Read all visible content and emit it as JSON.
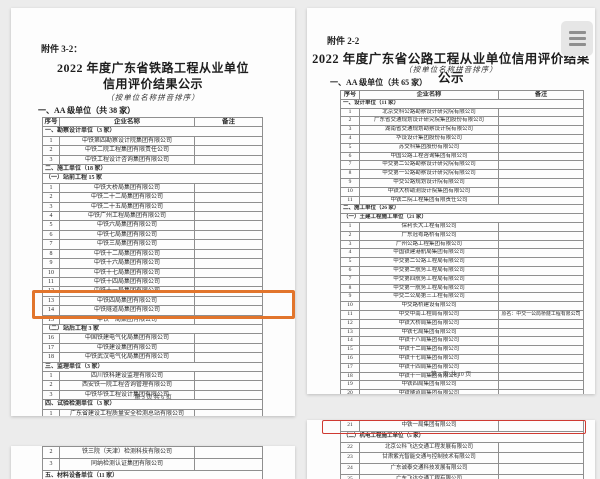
{
  "viewer": {
    "menu_icon": "hamburger-menu-icon",
    "highlight_orange": "#e2752c",
    "highlight_red": "#cf3a32"
  },
  "left_page": {
    "attachment": "附件 3-2：",
    "title_line1": "2022 年度广东省铁路工程从业单位",
    "title_line2": "信用评价结果公示",
    "subtitle": "（按单位名称拼音排序）",
    "section": "一、AA 级单位（共 38 家）",
    "columns": [
      "序号",
      "企业名称",
      "备注"
    ],
    "rows": [
      {
        "t": "group",
        "label": "一、勘察设计单位（3 家）"
      },
      {
        "t": "item",
        "no": "1",
        "name": "中铁第四勘察设计院集团有限公司",
        "note": ""
      },
      {
        "t": "item",
        "no": "2",
        "name": "中铁二院工程集团有限责任公司",
        "note": ""
      },
      {
        "t": "item",
        "no": "3",
        "name": "中铁工程设计咨询集团有限公司",
        "note": ""
      },
      {
        "t": "group",
        "label": "二、施工单位（18 家）"
      },
      {
        "t": "sub",
        "label": "（一）站前工程 15 家"
      },
      {
        "t": "item",
        "no": "1",
        "name": "中铁大桥局集团有限公司",
        "note": ""
      },
      {
        "t": "item",
        "no": "2",
        "name": "中铁二十二局集团有限公司",
        "note": ""
      },
      {
        "t": "item",
        "no": "3",
        "name": "中铁二十五局集团有限公司",
        "note": ""
      },
      {
        "t": "item",
        "no": "4",
        "name": "中铁广州工程局集团有限公司",
        "note": ""
      },
      {
        "t": "item",
        "no": "5",
        "name": "中铁六局集团有限公司",
        "note": ""
      },
      {
        "t": "item",
        "no": "6",
        "name": "中铁七局集团有限公司",
        "note": ""
      },
      {
        "t": "item",
        "no": "7",
        "name": "中铁三局集团有限公司",
        "note": ""
      },
      {
        "t": "item",
        "no": "8",
        "name": "中铁十二局集团有限公司",
        "note": ""
      },
      {
        "t": "item",
        "no": "9",
        "name": "中铁十六局集团有限公司",
        "note": ""
      },
      {
        "t": "item",
        "no": "10",
        "name": "中铁十七局集团有限公司",
        "note": ""
      },
      {
        "t": "item",
        "no": "11",
        "name": "中铁十四局集团有限公司",
        "note": ""
      },
      {
        "t": "item",
        "no": "12",
        "name": "中铁十一局集团有限公司",
        "note": ""
      },
      {
        "t": "item",
        "no": "13",
        "name": "中铁四局集团有限公司",
        "note": ""
      },
      {
        "t": "item",
        "no": "14",
        "name": "中铁隧道局集团有限公司",
        "note": ""
      },
      {
        "t": "item",
        "no": "15",
        "name": "中铁一局集团有限公司",
        "note": ""
      },
      {
        "t": "sub",
        "label": "（二）站后工程 3 家"
      },
      {
        "t": "item",
        "no": "16",
        "name": "中国铁建电气化局集团有限公司",
        "note": ""
      },
      {
        "t": "item",
        "no": "17",
        "name": "中铁建设集团有限公司",
        "note": ""
      },
      {
        "t": "item",
        "no": "18",
        "name": "中铁武汉电气化局集团有限公司",
        "note": ""
      },
      {
        "t": "group",
        "label": "三、监理单位（3 家）"
      },
      {
        "t": "item",
        "no": "1",
        "name": "四川铁科建设监理有限公司",
        "note": ""
      },
      {
        "t": "item",
        "no": "2",
        "name": "西安铁一院工程咨询管理有限公司",
        "note": ""
      },
      {
        "t": "item",
        "no": "3",
        "name": "中铁华铁工程设计集团有限公司",
        "note": ""
      },
      {
        "t": "group",
        "label": "四、试验检测单位（3 家）"
      },
      {
        "t": "item",
        "no": "1",
        "name": "广东省建设工程质量安全检测总站有限公司",
        "note": ""
      }
    ],
    "footer": "第 3 页 共 6 页"
  },
  "left_fragment": {
    "rows": [
      {
        "t": "item",
        "no": "2",
        "name": "铁三院（天津）检测科技有限公司",
        "note": ""
      },
      {
        "t": "item",
        "no": "3",
        "name": "同纳检测认证集团有限公司",
        "note": ""
      },
      {
        "t": "group",
        "label": "五、材料设备单位（11 家）"
      }
    ]
  },
  "right_page": {
    "attachment": "附件 2-2",
    "title_line1": "2022 年度广东省公路工程从业单位信用评价结果公示",
    "subtitle": "（按单位名称拼音排序）",
    "section": "一、AA 级单位（共 65 家）",
    "columns": [
      "序号",
      "企业名称",
      "备注"
    ],
    "rows": [
      {
        "t": "group",
        "label": "一、设计单位（11 家）"
      },
      {
        "t": "item",
        "no": "1",
        "name": "北京交科公路勘察设计研究院有限公司",
        "note": ""
      },
      {
        "t": "item",
        "no": "2",
        "name": "广东省交通规划设计研究院集团股份有限公司",
        "note": ""
      },
      {
        "t": "item",
        "no": "3",
        "name": "湖南省交通规划勘察设计院有限公司",
        "note": ""
      },
      {
        "t": "item",
        "no": "4",
        "name": "华设设计集团股份有限公司",
        "note": ""
      },
      {
        "t": "item",
        "no": "5",
        "name": "苏交科集团股份有限公司",
        "note": ""
      },
      {
        "t": "item",
        "no": "6",
        "name": "中国公路工程咨询集团有限公司",
        "note": ""
      },
      {
        "t": "item",
        "no": "7",
        "name": "中交第二公路勘察设计研究院有限公司",
        "note": ""
      },
      {
        "t": "item",
        "no": "8",
        "name": "中交第一公路勘察设计研究院有限公司",
        "note": ""
      },
      {
        "t": "item",
        "no": "9",
        "name": "中交公路规划设计院有限公司",
        "note": ""
      },
      {
        "t": "item",
        "no": "10",
        "name": "中铁大桥勘测设计院集团有限公司",
        "note": ""
      },
      {
        "t": "item",
        "no": "11",
        "name": "中铁二院工程集团有限责任公司",
        "note": ""
      },
      {
        "t": "group",
        "label": "二、施工单位（26 家）"
      },
      {
        "t": "sub",
        "label": "（一）土建工程施工单位（21 家）"
      },
      {
        "t": "item",
        "no": "1",
        "name": "保利长大工程有限公司",
        "note": ""
      },
      {
        "t": "item",
        "no": "2",
        "name": "广东冠粤路桥有限公司",
        "note": ""
      },
      {
        "t": "item",
        "no": "3",
        "name": "广州公路工程集团有限公司",
        "note": ""
      },
      {
        "t": "item",
        "no": "4",
        "name": "中国铁建港航局集团有限公司",
        "note": ""
      },
      {
        "t": "item",
        "no": "5",
        "name": "中交第二公路工程局有限公司",
        "note": ""
      },
      {
        "t": "item",
        "no": "6",
        "name": "中交第二航务工程局有限公司",
        "note": ""
      },
      {
        "t": "item",
        "no": "7",
        "name": "中交第四航务工程局有限公司",
        "note": ""
      },
      {
        "t": "item",
        "no": "8",
        "name": "中交第一航务工程局有限公司",
        "note": ""
      },
      {
        "t": "item",
        "no": "9",
        "name": "中交二公局第三工程有限公司",
        "note": ""
      },
      {
        "t": "item",
        "no": "10",
        "name": "中交路桥建设有限公司",
        "note": ""
      },
      {
        "t": "item",
        "no": "11",
        "name": "中交中南工程局有限公司",
        "note": "原名：中交一公局桥隧工程有限公司"
      },
      {
        "t": "item",
        "no": "12",
        "name": "中铁大桥局集团有限公司",
        "note": ""
      },
      {
        "t": "item",
        "no": "13",
        "name": "中铁七局集团有限公司",
        "note": ""
      },
      {
        "t": "item",
        "no": "14",
        "name": "中铁十八局集团有限公司",
        "note": ""
      },
      {
        "t": "item",
        "no": "15",
        "name": "中铁十二局集团有限公司",
        "note": ""
      },
      {
        "t": "item",
        "no": "16",
        "name": "中铁十七局集团有限公司",
        "note": ""
      },
      {
        "t": "item",
        "no": "17",
        "name": "中铁十四局集团有限公司",
        "note": ""
      },
      {
        "t": "item",
        "no": "18",
        "name": "中铁十一局集团有限公司",
        "note": ""
      },
      {
        "t": "item",
        "no": "19",
        "name": "中铁四局集团有限公司",
        "note": ""
      },
      {
        "t": "item",
        "no": "20",
        "name": "中铁隧道局集团有限公司",
        "note": ""
      }
    ],
    "footer": "第 3 页 共 10 页"
  },
  "right_fragment": {
    "rows": [
      {
        "t": "item",
        "no": "21",
        "name": "中铁一局集团有限公司",
        "note": ""
      },
      {
        "t": "sub",
        "label": "（二）机电工程施工单位（5 家）"
      },
      {
        "t": "item",
        "no": "22",
        "name": "北京公科飞达交通工程发展有限公司",
        "note": ""
      },
      {
        "t": "item",
        "no": "23",
        "name": "甘肃紫光智能交通与控制技术有限公司",
        "note": ""
      },
      {
        "t": "item",
        "no": "24",
        "name": "广东诚泰交通科技发展有限公司",
        "note": ""
      },
      {
        "t": "item",
        "no": "25",
        "name": "广东飞达交通工程有限公司",
        "note": ""
      }
    ]
  }
}
